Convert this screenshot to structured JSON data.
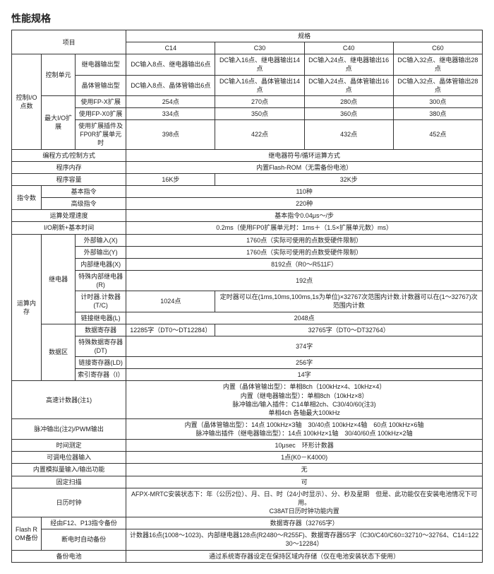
{
  "title": "性能规格",
  "header": {
    "item": "项目",
    "spec": "规格",
    "models": [
      "C14",
      "C30",
      "C40",
      "C60"
    ]
  },
  "rows": {
    "r1_grp": "控制I/O点数",
    "r1_sub1": "控制单元",
    "r1_a": "继电器输出型",
    "r1_b": "晶体管输出型",
    "r1_a_vals": [
      "DC输入8点、继电器输出6点",
      "DC输入16点、继电器输出14点",
      "DC输入24点、继电器输出16点",
      "DC输入32点、继电器输出28点"
    ],
    "r1_b_vals": [
      "DC输入8点、晶体管输出6点",
      "DC输入16点、晶体管输出14点",
      "DC输入24点、晶体管输出16点",
      "DC输入32点、晶体管输出28点"
    ],
    "r2_sub": "最大I/O扩展",
    "r2_a": "使用FP-X扩展",
    "r2_b": "使用FP-X0扩展",
    "r2_c": "使用扩展插件及FP0R扩展单元时",
    "r2_a_vals": [
      "254点",
      "270点",
      "280点",
      "300点"
    ],
    "r2_b_vals": [
      "334点",
      "350点",
      "360点",
      "380点"
    ],
    "r2_c_vals": [
      "398点",
      "422点",
      "432点",
      "452点"
    ],
    "prog_method_lbl": "编程方式/控制方式",
    "prog_method_val": "继电器符号/循环运算方式",
    "prog_store_lbl": "程序内存",
    "prog_store_val": "内置Flash-ROM（无需备份电池）",
    "prog_cap_lbl": "程序容量",
    "prog_cap_vals": [
      "16K步",
      "32K步"
    ],
    "instr_lbl": "指令数",
    "instr_basic_lbl": "基本指令",
    "instr_basic_val": "110种",
    "instr_adv_lbl": "高级指令",
    "instr_adv_val": "220种",
    "speed_lbl": "运算处理速度",
    "speed_val": "基本指令0.04μs～/步",
    "io_refresh_lbl": "I/O刷新+基本时间",
    "io_refresh_val": "0.2ms（使用FP0扩展单元时：1ms＋（1.5×扩展单元数）ms）",
    "mem_grp": "运算内存",
    "relay_grp": "继电器",
    "relay_x_lbl": "外部输入(X)",
    "relay_x_val": "1760点（实际可使用的点数受硬件限制）",
    "relay_y_lbl": "外部输出(Y)",
    "relay_y_val": "1760点（实际可使用的点数受硬件限制）",
    "relay_r_lbl": "内部继电器(X)",
    "relay_r_val": "8192点（R0～R511F）",
    "relay_sp_lbl": "特殊内部继电器(R)",
    "relay_sp_val": "192点",
    "relay_tc_lbl": "计时器.计数器(T/C)",
    "relay_tc_val_left": "1024点",
    "relay_tc_val_right": "定时器可以在(1ms,10ms,100ms,1s为单位)×32767次范围内计数.计数器可以在(1～32767)次范围内计数",
    "relay_l_lbl": "链接继电器(L)",
    "relay_l_val": "2048点",
    "data_grp": "数据区",
    "data_dt_lbl": "数据寄存器",
    "data_dt_vals": [
      "12285字（DT0～DT12284）",
      "32765字（DT0～DT32764）"
    ],
    "data_sdt_lbl": "特殊数据寄存器(DT)",
    "data_sdt_val": "374字",
    "data_ld_lbl": "链接寄存器(LD)",
    "data_ld_val": "256字",
    "data_ix_lbl": "索引寄存器（I）",
    "data_ix_val": "14字",
    "hsc_lbl": "高速计数器(注1)",
    "hsc_l1": "内置（晶体管输出型）：单相8ch（100kHz×4、10kHz×4）",
    "hsc_l2": "内置（继电器输出型）：单相8ch（10kHz×8）",
    "hsc_l3": "脉冲输出/输入插件：C14单相2ch、C30/40/60(注3)",
    "hsc_l4": "单相4ch 各轴最大100kHz",
    "pulse_lbl": "脉冲输出(注2)/PWM输出",
    "pulse_l1": "内置（晶体管输出型）：14点 100kHz×3轴　30/40点 100kHz×4轴　60点 100kHz×6轴",
    "pulse_l2": "脉冲输出插件（继电器输出型）：14点 100kHz×1轴　30/40/60点 100kHz×2轴",
    "interval_lbl": "时间测定",
    "interval_val": "10μsec　环形计数器",
    "potent_lbl": "可调电位器输入",
    "potent_val": "1点(K0－K4000)",
    "analog_lbl": "内置模拟量输入/输出功能",
    "analog_val": "无",
    "scan_lbl": "固定扫描",
    "scan_val": "可",
    "rtc_lbl": "日历时钟",
    "rtc_l1": "AFPX-MRTC安装状态下：年（公历2位）、月、日、时（24小时显示）、分、秒及星期　但是、此功能仅在安装电池情况下可用。",
    "rtc_l2": "C38AT日历时钟功能内置",
    "flash_lbl": "Flash ROM备份",
    "flash_f12_lbl": "经由F12、P13指令备份",
    "flash_f12_val": "数据寄存器（32765字）",
    "flash_auto_lbl": "断电时自动备份",
    "flash_auto_val": "计数器16点(1008～1023)、内部继电器128点(R2480～R255F)、数据寄存器55字（C30/C40/C60=32710～32764、C14=12230～12284）",
    "battery_lbl": "备份电池",
    "battery_val": "通过系统寄存器设定在保持区域内存储（仅在电池安装状态下使用）"
  }
}
